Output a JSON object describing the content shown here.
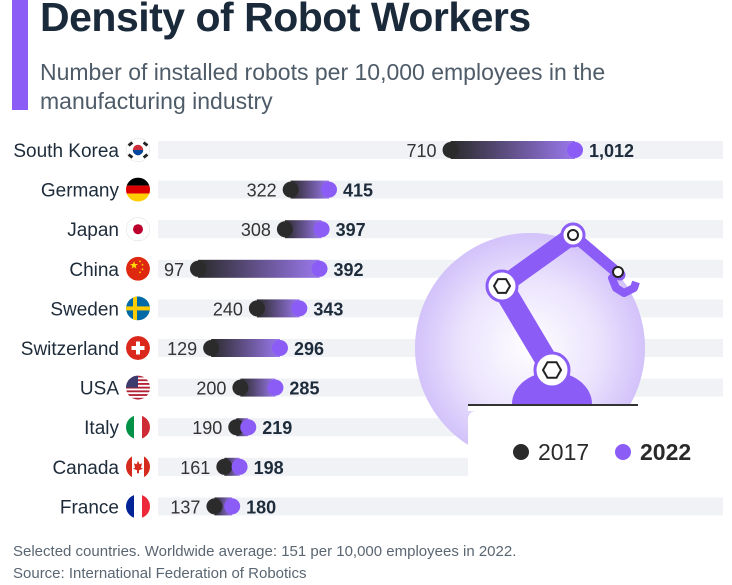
{
  "header": {
    "title": "Density of Robot Workers",
    "subtitle": "Number of installed robots per 10,000 employees in the manufacturing industry"
  },
  "legend": {
    "label_2017": "2017",
    "label_2022": "2022"
  },
  "footer": {
    "note": "Selected countries. Worldwide average: 151 per 10,000 employees in 2022.",
    "source": "Source: International Federation of Robotics"
  },
  "colors": {
    "accent": "#8b5cf6",
    "dot_2017": "#2b2b2b",
    "dot_2022": "#8b5cf6",
    "row_background": "#f0f2f6"
  },
  "illustration": {
    "icon": "robot-arm-icon"
  },
  "chart_data": {
    "type": "dumbbell",
    "title": "Density of Robot Workers",
    "subtitle": "Number of installed robots per 10,000 employees in the manufacturing industry",
    "series": [
      {
        "name": "2017",
        "values": [
          710,
          322,
          308,
          97,
          240,
          129,
          200,
          190,
          161,
          137
        ]
      },
      {
        "name": "2022",
        "values": [
          1012,
          415,
          397,
          392,
          343,
          296,
          285,
          219,
          198,
          180
        ]
      }
    ],
    "categories": [
      {
        "country": "South Korea",
        "flag": "south-korea-flag-icon",
        "v2017": 710,
        "v2017_label": "710",
        "v2022": 1012,
        "v2022_label": "1,012"
      },
      {
        "country": "Germany",
        "flag": "germany-flag-icon",
        "v2017": 322,
        "v2017_label": "322",
        "v2022": 415,
        "v2022_label": "415"
      },
      {
        "country": "Japan",
        "flag": "japan-flag-icon",
        "v2017": 308,
        "v2017_label": "308",
        "v2022": 397,
        "v2022_label": "397"
      },
      {
        "country": "China",
        "flag": "china-flag-icon",
        "v2017": 97,
        "v2017_label": "97",
        "v2022": 392,
        "v2022_label": "392"
      },
      {
        "country": "Sweden",
        "flag": "sweden-flag-icon",
        "v2017": 240,
        "v2017_label": "240",
        "v2022": 343,
        "v2022_label": "343"
      },
      {
        "country": "Switzerland",
        "flag": "switzerland-flag-icon",
        "v2017": 129,
        "v2017_label": "129",
        "v2022": 296,
        "v2022_label": "296"
      },
      {
        "country": "USA",
        "flag": "usa-flag-icon",
        "v2017": 200,
        "v2017_label": "200",
        "v2022": 285,
        "v2022_label": "285"
      },
      {
        "country": "Italy",
        "flag": "italy-flag-icon",
        "v2017": 190,
        "v2017_label": "190",
        "v2022": 219,
        "v2022_label": "219"
      },
      {
        "country": "Canada",
        "flag": "canada-flag-icon",
        "v2017": 161,
        "v2017_label": "161",
        "v2022": 198,
        "v2022_label": "198"
      },
      {
        "country": "France",
        "flag": "france-flag-icon",
        "v2017": 137,
        "v2017_label": "137",
        "v2022": 180,
        "v2022_label": "180"
      }
    ],
    "legend_position": "bottom-right",
    "grid": false
  }
}
